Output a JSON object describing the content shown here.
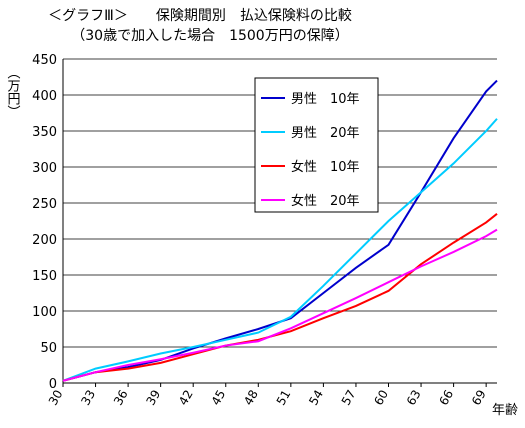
{
  "chart_data": {
    "type": "line",
    "title": "＜グラフⅢ＞　　保険期間別　払込保険料の比較",
    "subtitle": "（30歳で加入した場合　1500万円の保障）",
    "y_label": "（万円）",
    "x_label": "年齢",
    "x": [
      30,
      33,
      36,
      39,
      42,
      45,
      48,
      51,
      54,
      57,
      60,
      63,
      66,
      69,
      70
    ],
    "series": [
      {
        "name": "男性　10年",
        "color": "#0000cc",
        "values": [
          3,
          15,
          22,
          32,
          48,
          62,
          75,
          90,
          125,
          160,
          192,
          265,
          340,
          405,
          420
        ]
      },
      {
        "name": "男性　20年",
        "color": "#00ccff",
        "values": [
          3,
          20,
          30,
          41,
          50,
          60,
          70,
          92,
          135,
          180,
          225,
          265,
          305,
          350,
          367
        ]
      },
      {
        "name": "女性　10年",
        "color": "#ff0000",
        "values": [
          3,
          15,
          20,
          28,
          40,
          52,
          60,
          72,
          90,
          107,
          128,
          165,
          195,
          223,
          235
        ]
      },
      {
        "name": "女性　20年",
        "color": "#ff00ff",
        "values": [
          3,
          15,
          25,
          33,
          42,
          52,
          58,
          76,
          97,
          118,
          140,
          162,
          182,
          204,
          213
        ]
      }
    ],
    "xlim": [
      30,
      70
    ],
    "xticks": [
      30,
      33,
      36,
      39,
      42,
      45,
      48,
      51,
      54,
      57,
      60,
      63,
      66,
      69
    ],
    "ylim": [
      0,
      450
    ],
    "yticks": [
      0,
      50,
      100,
      150,
      200,
      250,
      300,
      350,
      400,
      450
    ],
    "grid": true,
    "legend": "top"
  }
}
